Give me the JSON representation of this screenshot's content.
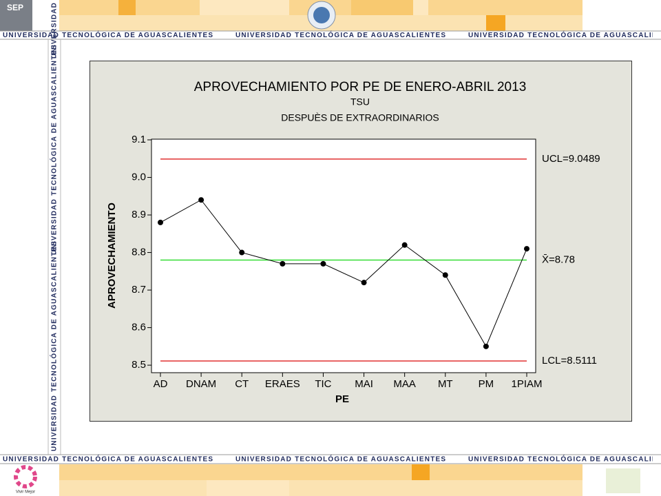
{
  "page": {
    "banner_text": "UNIVERSIDAD TECNOLÓGICA DE AGUASCALIENTES",
    "sep_logo": "SEP",
    "footer_logo": "Vivir Mejor"
  },
  "chart_data": {
    "type": "line",
    "title": "APROVECHAMIENTO POR PE DE ENERO-ABRIL 2013",
    "subtitle": [
      "TSU",
      "DESPUÈS DE EXTRAORDINARIOS"
    ],
    "x_label": "PE",
    "y_label": "APROVECHAMIENTO",
    "categories": [
      "AD",
      "DNAM",
      "CT",
      "ERAES",
      "TIC",
      "MAI",
      "MAA",
      "MT",
      "PM",
      "1PIAM"
    ],
    "series": [
      {
        "name": "APROVECHAMIENTO",
        "color": "#000000",
        "values": [
          8.88,
          8.94,
          8.8,
          8.77,
          8.77,
          8.72,
          8.82,
          8.74,
          8.55,
          8.81
        ]
      }
    ],
    "reference_lines": [
      {
        "value": 9.0489,
        "label": "UCL=9.0489",
        "color": "#e03030"
      },
      {
        "value": 8.78,
        "label": "X̄=8.78",
        "color": "#33dd33"
      },
      {
        "value": 8.5111,
        "label": "LCL=8.5111",
        "color": "#e03030"
      }
    ],
    "ylim": [
      8.48,
      9.1
    ],
    "yticks": [
      8.5,
      8.6,
      8.7,
      8.8,
      8.9,
      {
        "value": 9,
        "label": "9.0"
      },
      9.1
    ]
  }
}
